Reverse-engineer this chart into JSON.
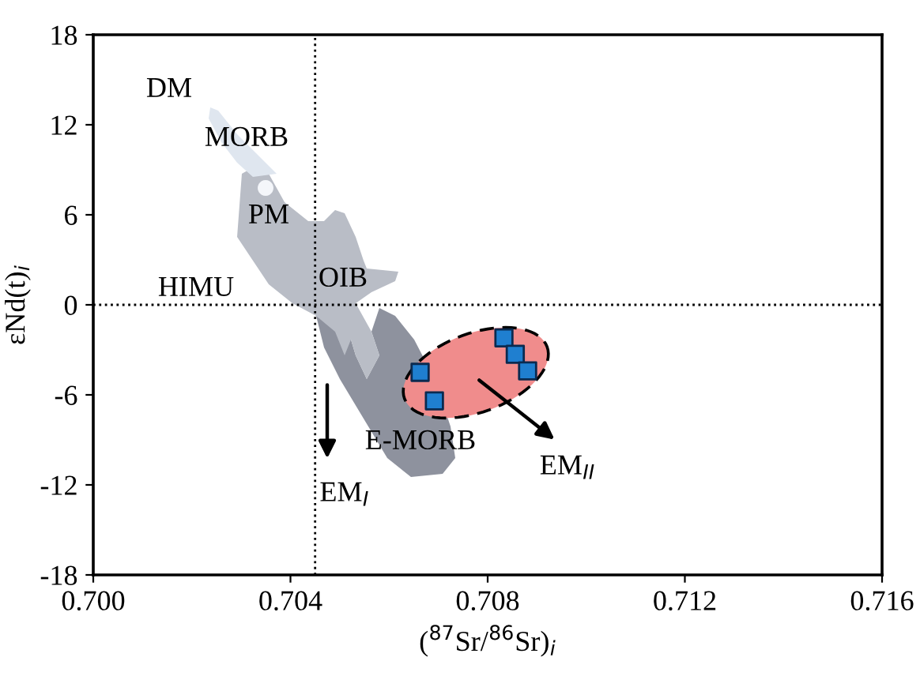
{
  "chart_data": {
    "type": "scatter",
    "xlabel": "($^{87}$Sr/$^{86}$Sr)$_{i}$",
    "ylabel": "εNd(t)$_{i}$",
    "x": [
      0.70663,
      0.70692,
      0.70833,
      0.70856,
      0.70881
    ],
    "values": [
      -4.5,
      -6.4,
      -2.2,
      -3.3,
      -4.4
    ],
    "color": "#1f7fd0",
    "marker": "square",
    "xlim": [
      0.7,
      0.716
    ],
    "xticks": [
      {
        "value": 0.7,
        "label": "0.700"
      },
      {
        "value": 0.704,
        "label": "0.704"
      },
      {
        "value": 0.708,
        "label": "0.708"
      },
      {
        "value": 0.712,
        "label": "0.712"
      },
      {
        "value": 0.716,
        "label": "0.716"
      }
    ],
    "ylim": [
      -18,
      18
    ],
    "yticks": [
      -18,
      -12,
      -6,
      0,
      6,
      12,
      18
    ],
    "ref_lines": [
      {
        "axis": "x",
        "value": 0.7045,
        "line_style": "dotted",
        "color": "#000000"
      },
      {
        "axis": "y",
        "value": 0,
        "line_style": "dotted",
        "color": "#000000"
      }
    ],
    "annotations": [
      "DM",
      "MORB",
      "PM",
      "OIB",
      "HIMU",
      "E-MORB",
      "EM$_{I}$",
      "EM$_{II}$"
    ],
    "grid": false,
    "legend": false
  }
}
